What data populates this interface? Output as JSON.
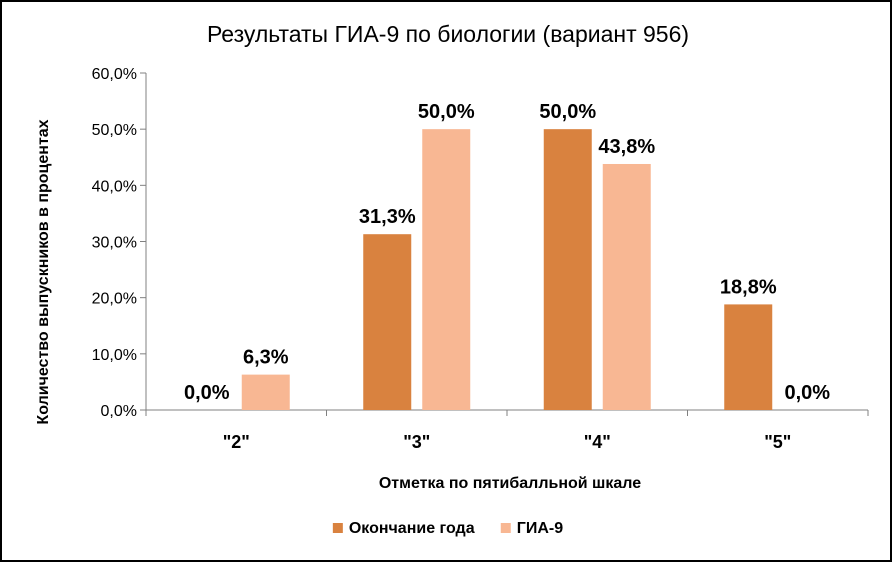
{
  "chart_data": {
    "type": "bar",
    "title": "Результаты ГИА-9 по биологии (вариант 956)",
    "xlabel": "Отметка по пятибалльной шкале",
    "ylabel": "Количество выпускников в процентах",
    "categories": [
      "\"2\"",
      "\"3\"",
      "\"4\"",
      "\"5\""
    ],
    "series": [
      {
        "name": "Окончание года",
        "color": "#D9823F",
        "values": [
          0.0,
          31.3,
          50.0,
          18.8
        ],
        "labels": [
          "0,0%",
          "31,3%",
          "50,0%",
          "18,8%"
        ]
      },
      {
        "name": "ГИА-9",
        "color": "#F8B793",
        "values": [
          6.3,
          50.0,
          43.8,
          0.0
        ],
        "labels": [
          "6,3%",
          "50,0%",
          "43,8%",
          "0,0%"
        ]
      }
    ],
    "ylim": [
      0,
      60
    ],
    "yticks": [
      0,
      10,
      20,
      30,
      40,
      50,
      60
    ],
    "ytick_labels": [
      "0,0%",
      "10,0%",
      "20,0%",
      "30,0%",
      "40,0%",
      "50,0%",
      "60,0%"
    ],
    "grid": false,
    "legend_position": "bottom"
  }
}
